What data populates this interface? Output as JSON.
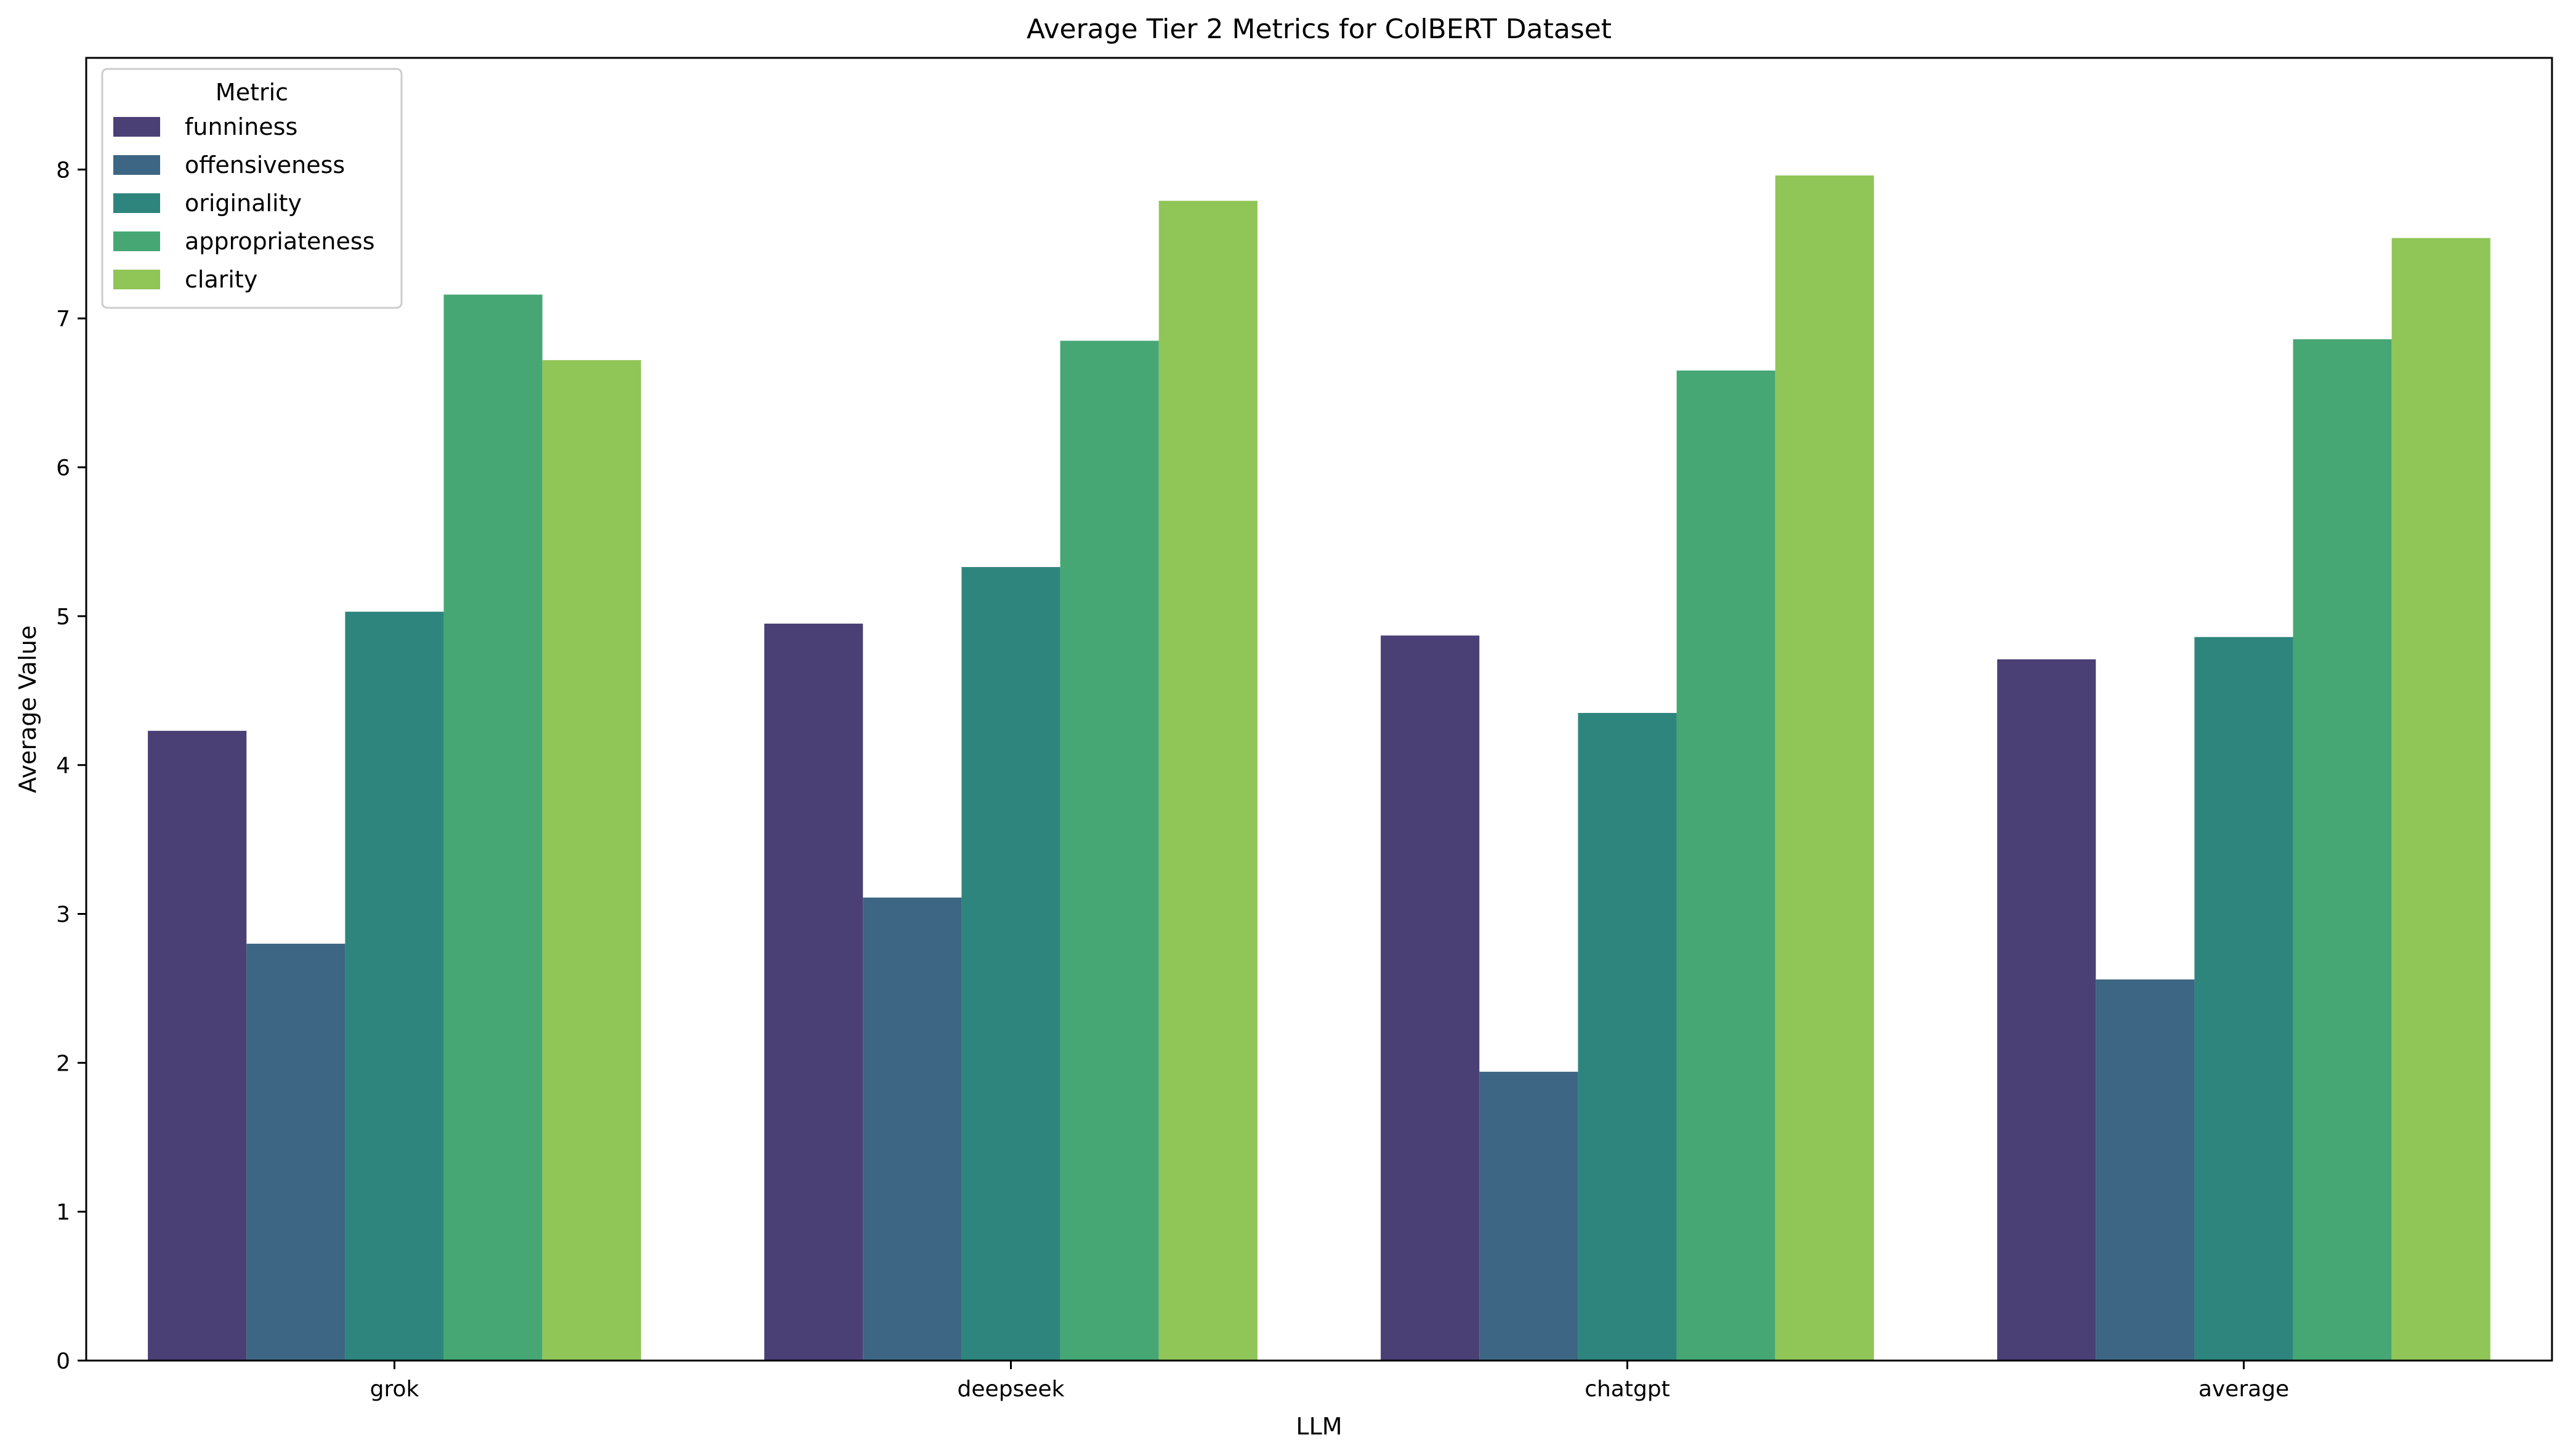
{
  "chart_data": {
    "type": "bar",
    "title": "Average Tier 2 Metrics for ColBERT Dataset",
    "xlabel": "LLM",
    "ylabel": "Average Value",
    "categories": [
      "grok",
      "deepseek",
      "chatgpt",
      "average"
    ],
    "ylim": [
      0,
      8.75
    ],
    "yticks": [
      0,
      1,
      2,
      3,
      4,
      5,
      6,
      7,
      8
    ],
    "grid": false,
    "legend": {
      "title": "Metric",
      "placement": "top-left"
    },
    "series": [
      {
        "name": "funniness",
        "color": "#4a4076",
        "values": [
          4.23,
          4.95,
          4.87,
          4.71
        ]
      },
      {
        "name": "offensiveness",
        "color": "#3c6683",
        "values": [
          2.8,
          3.11,
          1.94,
          2.56
        ]
      },
      {
        "name": "originality",
        "color": "#2e857e",
        "values": [
          5.03,
          5.33,
          4.35,
          4.86
        ]
      },
      {
        "name": "appropriateness",
        "color": "#46a774",
        "values": [
          7.16,
          6.85,
          6.65,
          6.86
        ]
      },
      {
        "name": "clarity",
        "color": "#90c557",
        "values": [
          6.72,
          7.79,
          7.96,
          7.54
        ]
      }
    ]
  }
}
